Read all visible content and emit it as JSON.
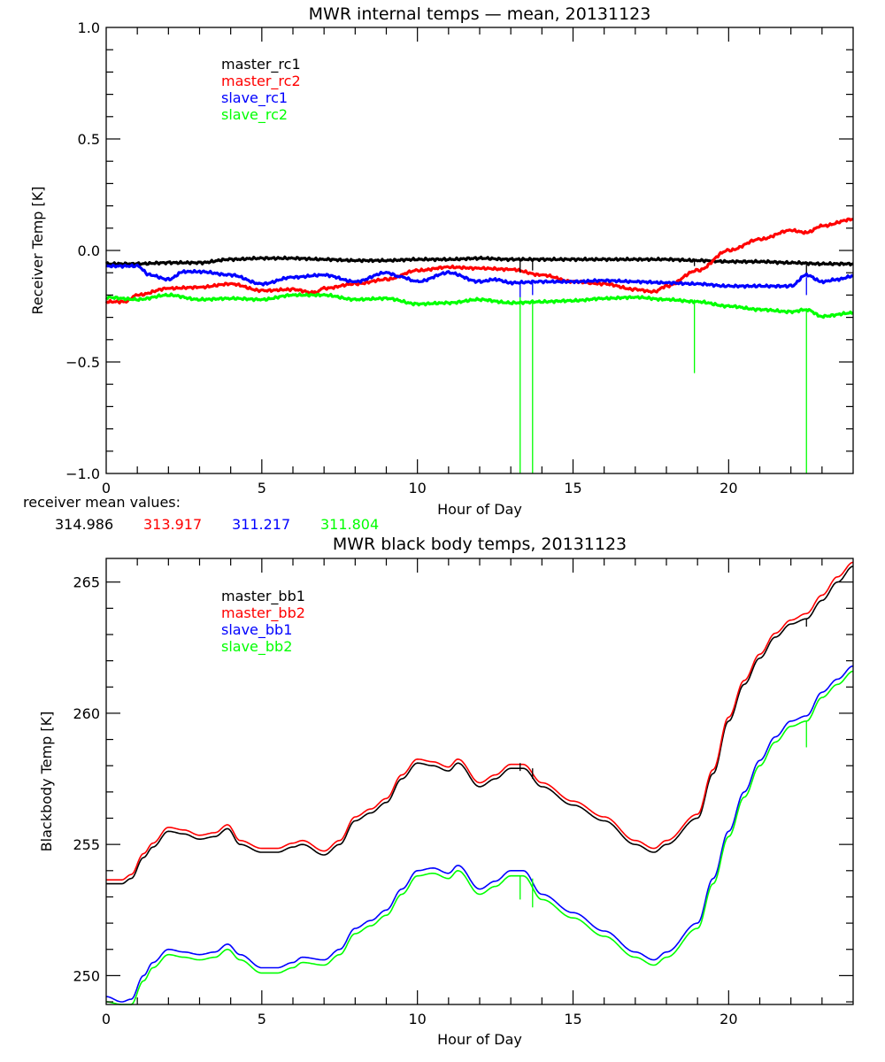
{
  "chart_data": [
    {
      "type": "line",
      "title": "MWR internal temps — mean, 20131123",
      "xlabel": "Hour of Day",
      "ylabel": "Receiver Temp [K]",
      "xlim": [
        0,
        24
      ],
      "ylim": [
        -1.0,
        1.0
      ],
      "xticks": [
        0,
        5,
        10,
        15,
        20
      ],
      "xtick_labels": [
        "0",
        "5",
        "10",
        "15",
        "20"
      ],
      "yticks": [
        -1.0,
        -0.5,
        0.0,
        0.5,
        1.0
      ],
      "ytick_labels": [
        "−1.0",
        "−0.5",
        "0.0",
        "0.5",
        "1.0"
      ],
      "grid": false,
      "legend_position": "top-left",
      "series": [
        {
          "name": "master_rc1",
          "color": "#000000",
          "x": [
            0,
            1,
            2,
            3,
            4,
            5,
            6,
            7,
            8,
            9,
            10,
            11,
            12,
            13,
            14,
            15,
            16,
            17,
            18,
            19,
            20,
            21,
            22,
            23,
            24
          ],
          "y": [
            -0.06,
            -0.06,
            -0.055,
            -0.055,
            -0.04,
            -0.035,
            -0.035,
            -0.04,
            -0.045,
            -0.045,
            -0.04,
            -0.04,
            -0.035,
            -0.04,
            -0.04,
            -0.04,
            -0.04,
            -0.04,
            -0.04,
            -0.045,
            -0.05,
            -0.05,
            -0.055,
            -0.06,
            -0.06
          ]
        },
        {
          "name": "master_rc2",
          "color": "#ff0000",
          "x": [
            0,
            0.6,
            1,
            2,
            3,
            4,
            5,
            6,
            6.7,
            7,
            8,
            9,
            10,
            11,
            12,
            13,
            14,
            15,
            16,
            17,
            17.6,
            18,
            19,
            20,
            21,
            22,
            22.5,
            23,
            24
          ],
          "y": [
            -0.23,
            -0.23,
            -0.2,
            -0.17,
            -0.165,
            -0.15,
            -0.18,
            -0.175,
            -0.19,
            -0.17,
            -0.15,
            -0.13,
            -0.09,
            -0.075,
            -0.08,
            -0.085,
            -0.11,
            -0.14,
            -0.15,
            -0.175,
            -0.185,
            -0.16,
            -0.09,
            0.0,
            0.05,
            0.09,
            0.08,
            0.11,
            0.14
          ]
        },
        {
          "name": "slave_rc1",
          "color": "#0000ff",
          "x": [
            0,
            1,
            1.4,
            2,
            2.5,
            3,
            4,
            5,
            6,
            7,
            8,
            9,
            9.5,
            10,
            11,
            12,
            12.5,
            13,
            14,
            15,
            16,
            17,
            18,
            19,
            20,
            21,
            22,
            22.5,
            23,
            23.5,
            24
          ],
          "y": [
            -0.07,
            -0.07,
            -0.11,
            -0.13,
            -0.095,
            -0.095,
            -0.11,
            -0.15,
            -0.12,
            -0.11,
            -0.14,
            -0.1,
            -0.12,
            -0.14,
            -0.1,
            -0.14,
            -0.13,
            -0.145,
            -0.14,
            -0.14,
            -0.135,
            -0.14,
            -0.145,
            -0.15,
            -0.16,
            -0.16,
            -0.16,
            -0.11,
            -0.14,
            -0.13,
            -0.115
          ]
        },
        {
          "name": "slave_rc2",
          "color": "#00ff00",
          "x": [
            0,
            1,
            2,
            3,
            4,
            5,
            6,
            7,
            8,
            9,
            10,
            11,
            12,
            13,
            14,
            15,
            16,
            17,
            18,
            19,
            20,
            21,
            22,
            22.5,
            23,
            24
          ],
          "y": [
            -0.21,
            -0.22,
            -0.2,
            -0.22,
            -0.215,
            -0.22,
            -0.2,
            -0.2,
            -0.22,
            -0.215,
            -0.24,
            -0.235,
            -0.22,
            -0.235,
            -0.23,
            -0.225,
            -0.215,
            -0.21,
            -0.22,
            -0.23,
            -0.25,
            -0.265,
            -0.275,
            -0.265,
            -0.295,
            -0.28
          ]
        }
      ],
      "spikes": [
        {
          "x": 13.3,
          "y_from": -0.21,
          "y_to": -1.0,
          "color": "#00ff00"
        },
        {
          "x": 13.7,
          "y_from": -0.22,
          "y_to": -1.0,
          "color": "#00ff00"
        },
        {
          "x": 18.9,
          "y_from": -0.22,
          "y_to": -0.55,
          "color": "#00ff00"
        },
        {
          "x": 22.5,
          "y_from": -0.26,
          "y_to": -1.0,
          "color": "#00ff00"
        },
        {
          "x": 13.3,
          "y_from": -0.04,
          "y_to": -0.1,
          "color": "#000000"
        },
        {
          "x": 13.7,
          "y_from": -0.04,
          "y_to": -0.09,
          "color": "#000000"
        },
        {
          "x": 13.3,
          "y_from": -0.14,
          "y_to": -0.21,
          "color": "#0000ff"
        },
        {
          "x": 13.7,
          "y_from": -0.145,
          "y_to": -0.2,
          "color": "#0000ff"
        },
        {
          "x": 18.9,
          "y_from": -0.04,
          "y_to": -0.07,
          "color": "#000000"
        },
        {
          "x": 22.5,
          "y_from": -0.055,
          "y_to": -0.1,
          "color": "#000000"
        },
        {
          "x": 22.5,
          "y_from": -0.12,
          "y_to": -0.2,
          "color": "#0000ff"
        }
      ]
    },
    {
      "type": "line",
      "title": "MWR black body temps, 20131123",
      "xlabel": "Hour of Day",
      "ylabel": "Blackbody Temp [K]",
      "xlim": [
        0,
        24
      ],
      "ylim": [
        248.9,
        265.9
      ],
      "xticks": [
        0,
        5,
        10,
        15,
        20
      ],
      "xtick_labels": [
        "0",
        "5",
        "10",
        "15",
        "20"
      ],
      "yticks": [
        250,
        255,
        260,
        265
      ],
      "ytick_labels": [
        "250",
        "255",
        "260",
        "265"
      ],
      "grid": false,
      "legend_position": "top-left",
      "series": [
        {
          "name": "master_bb1",
          "color": "#000000",
          "x": [
            0,
            0.5,
            0.8,
            1.2,
            1.5,
            2,
            2.5,
            3,
            3.5,
            3.9,
            4.3,
            5,
            5.5,
            6,
            6.3,
            7,
            7.5,
            8,
            8.5,
            9,
            9.5,
            10,
            10.5,
            11,
            11.3,
            12,
            12.5,
            13,
            13.4,
            14,
            15,
            16,
            17,
            17.6,
            18,
            19,
            19.5,
            20,
            20.5,
            21,
            21.5,
            22,
            22.5,
            23,
            23.5,
            24
          ],
          "y": [
            253.5,
            253.5,
            253.7,
            254.5,
            254.9,
            255.5,
            255.4,
            255.2,
            255.3,
            255.6,
            255.0,
            254.7,
            254.7,
            254.9,
            255.0,
            254.6,
            255.0,
            255.9,
            256.2,
            256.6,
            257.5,
            258.1,
            258.0,
            257.8,
            258.1,
            257.2,
            257.5,
            257.9,
            257.9,
            257.2,
            256.5,
            255.9,
            255.0,
            254.7,
            255.0,
            256.0,
            257.7,
            259.7,
            261.1,
            262.1,
            262.9,
            263.4,
            263.6,
            264.3,
            265.0,
            265.6
          ]
        },
        {
          "name": "master_bb2",
          "color": "#ff0000",
          "x": [
            0,
            0.5,
            0.8,
            1.2,
            1.5,
            2,
            2.5,
            3,
            3.5,
            3.9,
            4.3,
            5,
            5.5,
            6,
            6.3,
            7,
            7.5,
            8,
            8.5,
            9,
            9.5,
            10,
            10.5,
            11,
            11.3,
            12,
            12.5,
            13,
            13.4,
            14,
            15,
            16,
            17,
            17.6,
            18,
            19,
            19.5,
            20,
            20.5,
            21,
            21.5,
            22,
            22.5,
            23,
            23.5,
            24
          ],
          "y": [
            253.65,
            253.65,
            253.85,
            254.65,
            255.05,
            255.65,
            255.55,
            255.35,
            255.45,
            255.75,
            255.15,
            254.85,
            254.85,
            255.05,
            255.15,
            254.75,
            255.15,
            256.05,
            256.35,
            256.75,
            257.65,
            258.25,
            258.15,
            257.95,
            258.25,
            257.35,
            257.65,
            258.05,
            258.05,
            257.35,
            256.65,
            256.05,
            255.15,
            254.85,
            255.15,
            256.15,
            257.85,
            259.85,
            261.25,
            262.25,
            263.05,
            263.55,
            263.8,
            264.5,
            265.2,
            265.75
          ]
        },
        {
          "name": "slave_bb1",
          "color": "#0000ff",
          "x": [
            0,
            0.5,
            0.8,
            1.2,
            1.5,
            2,
            2.5,
            3,
            3.5,
            3.9,
            4.3,
            5,
            5.5,
            6,
            6.3,
            7,
            7.5,
            8,
            8.5,
            9,
            9.5,
            10,
            10.5,
            11,
            11.3,
            12,
            12.5,
            13,
            13.4,
            14,
            15,
            16,
            17,
            17.6,
            18,
            19,
            19.5,
            20,
            20.5,
            21,
            21.5,
            22,
            22.5,
            23,
            23.5,
            24
          ],
          "y": [
            249.2,
            249.0,
            249.1,
            250.0,
            250.5,
            251.0,
            250.9,
            250.8,
            250.9,
            251.2,
            250.8,
            250.3,
            250.3,
            250.5,
            250.7,
            250.6,
            251.0,
            251.8,
            252.1,
            252.5,
            253.3,
            254.0,
            254.1,
            253.9,
            254.2,
            253.3,
            253.6,
            254.0,
            254.0,
            253.1,
            252.4,
            251.7,
            250.9,
            250.6,
            250.9,
            252.0,
            253.7,
            255.5,
            257.0,
            258.2,
            259.1,
            259.7,
            259.9,
            260.8,
            261.3,
            261.8
          ]
        },
        {
          "name": "slave_bb2",
          "color": "#00ff00",
          "x": [
            0,
            0.5,
            0.8,
            1.2,
            1.5,
            2,
            2.5,
            3,
            3.5,
            3.9,
            4.3,
            5,
            5.5,
            6,
            6.3,
            7,
            7.5,
            8,
            8.5,
            9,
            9.5,
            10,
            10.5,
            11,
            11.3,
            12,
            12.5,
            13,
            13.4,
            14,
            15,
            16,
            17,
            17.6,
            18,
            19,
            19.5,
            20,
            20.5,
            21,
            21.5,
            22,
            22.5,
            23,
            23.5,
            24
          ],
          "y": [
            249.0,
            248.9,
            248.9,
            249.8,
            250.3,
            250.8,
            250.7,
            250.6,
            250.7,
            251.0,
            250.6,
            250.1,
            250.1,
            250.3,
            250.5,
            250.4,
            250.8,
            251.6,
            251.9,
            252.3,
            253.1,
            253.8,
            253.9,
            253.7,
            254.0,
            253.1,
            253.4,
            253.8,
            253.8,
            252.9,
            252.2,
            251.5,
            250.7,
            250.4,
            250.7,
            251.8,
            253.5,
            255.3,
            256.8,
            258.0,
            258.9,
            259.5,
            259.7,
            260.6,
            261.1,
            261.6
          ]
        }
      ],
      "spikes": [
        {
          "x": 13.3,
          "y_from": 253.8,
          "y_to": 252.9,
          "color": "#00ff00"
        },
        {
          "x": 13.7,
          "y_from": 253.7,
          "y_to": 252.6,
          "color": "#00ff00"
        },
        {
          "x": 22.5,
          "y_from": 259.7,
          "y_to": 258.7,
          "color": "#00ff00"
        },
        {
          "x": 13.3,
          "y_from": 258.1,
          "y_to": 257.8,
          "color": "#000000"
        },
        {
          "x": 13.7,
          "y_from": 257.9,
          "y_to": 257.5,
          "color": "#000000"
        },
        {
          "x": 22.5,
          "y_from": 263.6,
          "y_to": 263.3,
          "color": "#000000"
        }
      ]
    }
  ],
  "annotations": {
    "receiver_mean_label": "receiver mean values:",
    "receiver_means": [
      {
        "value": "314.986",
        "color": "#000000"
      },
      {
        "value": "313.917",
        "color": "#ff0000"
      },
      {
        "value": "311.217",
        "color": "#0000ff"
      },
      {
        "value": "311.804",
        "color": "#00ff00"
      }
    ]
  }
}
